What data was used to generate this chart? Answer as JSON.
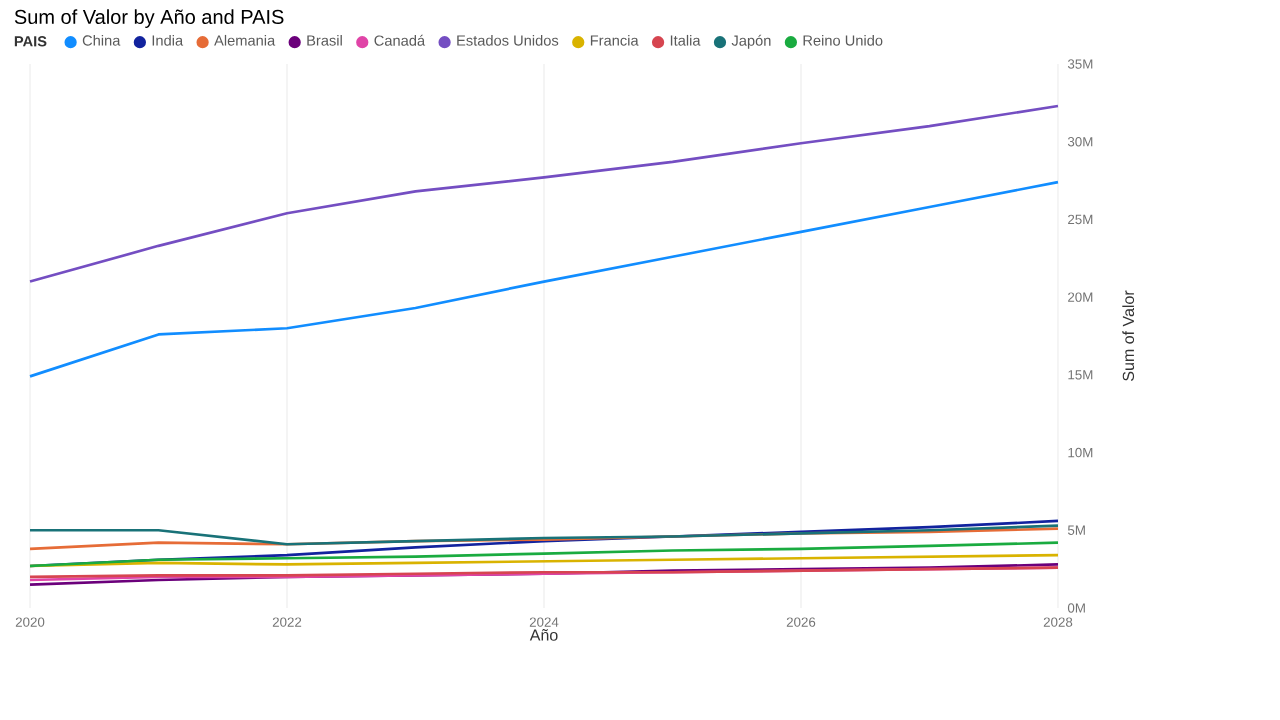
{
  "chart_data": {
    "type": "line",
    "title": "Sum of Valor by Año and PAIS",
    "xlabel": "Año",
    "ylabel": "Sum of Valor",
    "legend_title": "PAIS",
    "legend": "top left",
    "grid": "x",
    "marker": "none",
    "line_style": "solid",
    "x": [
      2020,
      2021,
      2022,
      2023,
      2024,
      2025,
      2026,
      2027,
      2028
    ],
    "xlim": [
      2020,
      2028
    ],
    "xticks": [
      2020,
      2022,
      2024,
      2026,
      2028
    ],
    "ylim": [
      0,
      35
    ],
    "yticks": [
      {
        "value": 0,
        "label": "0M"
      },
      {
        "value": 5,
        "label": "5M"
      },
      {
        "value": 10,
        "label": "10M"
      },
      {
        "value": 15,
        "label": "15M"
      },
      {
        "value": 20,
        "label": "20M"
      },
      {
        "value": 25,
        "label": "25M"
      },
      {
        "value": 30,
        "label": "30M"
      },
      {
        "value": 35,
        "label": "35M"
      }
    ],
    "series": [
      {
        "name": "China",
        "color": "#118dff",
        "values": [
          14.9,
          17.6,
          18.0,
          19.3,
          21.0,
          22.6,
          24.2,
          25.8,
          27.4
        ]
      },
      {
        "name": "India",
        "color": "#12239e",
        "values": [
          2.7,
          3.1,
          3.4,
          3.9,
          4.3,
          4.6,
          4.9,
          5.2,
          5.6
        ]
      },
      {
        "name": "Alemania",
        "color": "#e66c37",
        "values": [
          3.8,
          4.2,
          4.1,
          4.3,
          4.4,
          4.6,
          4.8,
          4.9,
          5.1
        ]
      },
      {
        "name": "Brasil",
        "color": "#6b007b",
        "values": [
          1.5,
          1.8,
          2.0,
          2.1,
          2.2,
          2.4,
          2.5,
          2.6,
          2.8
        ]
      },
      {
        "name": "Canadá",
        "color": "#e044a7",
        "values": [
          1.8,
          2.0,
          2.0,
          2.1,
          2.2,
          2.3,
          2.4,
          2.5,
          2.6
        ]
      },
      {
        "name": "Estados Unidos",
        "color": "#744ec2",
        "values": [
          21.0,
          23.3,
          25.4,
          26.8,
          27.7,
          28.7,
          29.9,
          31.0,
          32.3
        ]
      },
      {
        "name": "Francia",
        "color": "#d9b300",
        "values": [
          2.7,
          2.9,
          2.8,
          2.9,
          3.0,
          3.1,
          3.2,
          3.3,
          3.4
        ]
      },
      {
        "name": "Italia",
        "color": "#d64550",
        "values": [
          2.0,
          2.1,
          2.1,
          2.2,
          2.3,
          2.3,
          2.4,
          2.5,
          2.6
        ]
      },
      {
        "name": "Japón",
        "color": "#197278",
        "values": [
          5.0,
          5.0,
          4.1,
          4.3,
          4.5,
          4.6,
          4.8,
          5.0,
          5.3
        ]
      },
      {
        "name": "Reino Unido",
        "color": "#1aab40",
        "values": [
          2.7,
          3.1,
          3.2,
          3.3,
          3.5,
          3.7,
          3.8,
          4.0,
          4.2
        ]
      }
    ]
  }
}
